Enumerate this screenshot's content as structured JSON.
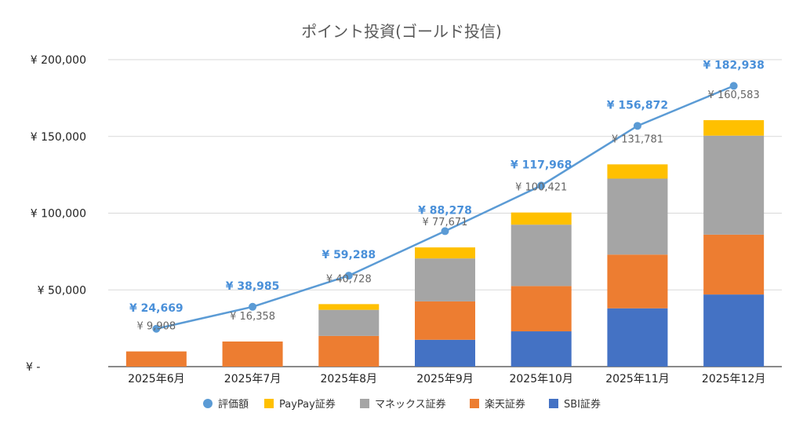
{
  "chart_data": {
    "type": "bar",
    "title": "ポイント投資(ゴールド投信)",
    "categories": [
      "2025年6月",
      "2025年7月",
      "2025年8月",
      "2025年9月",
      "2025年10月",
      "2025年11月",
      "2025年12月"
    ],
    "ylim": [
      0,
      200000
    ],
    "yticks": [
      0,
      50000,
      100000,
      150000,
      200000
    ],
    "ytick_labels": [
      "¥ -",
      "¥ 50,000",
      "¥ 100,000",
      "¥ 150,000",
      "¥ 200,000"
    ],
    "grid": true,
    "legend_position": "bottom",
    "series": [
      {
        "name": "SBI証券",
        "type": "bar",
        "color": "#4472c4",
        "values": [
          0,
          0,
          0,
          17500,
          23000,
          38000,
          47000
        ]
      },
      {
        "name": "楽天証券",
        "type": "bar",
        "color": "#ed7d31",
        "values": [
          9908,
          16358,
          20000,
          25000,
          29500,
          35000,
          39000
        ]
      },
      {
        "name": "マネックス証券",
        "type": "bar",
        "color": "#a5a5a5",
        "values": [
          0,
          0,
          17000,
          28000,
          40000,
          49500,
          64500
        ]
      },
      {
        "name": "PayPay証券",
        "type": "bar",
        "color": "#ffc000",
        "values": [
          0,
          0,
          3728,
          7171,
          7921,
          9281,
          10083
        ]
      },
      {
        "name": "評価額",
        "type": "line",
        "color": "#5b9bd5",
        "values": [
          24669,
          38985,
          59288,
          88278,
          117968,
          156872,
          182938
        ]
      }
    ],
    "bar_totals": [
      9908,
      16358,
      40728,
      77671,
      100421,
      131781,
      160583
    ],
    "bar_total_labels": [
      "¥ 9,908",
      "¥ 16,358",
      "¥ 40,728",
      "¥ 77,671",
      "¥ 100,421",
      "¥ 131,781",
      "¥ 160,583"
    ],
    "line_labels": [
      "¥ 24,669",
      "¥ 38,985",
      "¥ 59,288",
      "¥ 88,278",
      "¥ 117,968",
      "¥ 156,872",
      "¥ 182,938"
    ],
    "legend_order": [
      "評価額",
      "PayPay証券",
      "マネックス証券",
      "楽天証券",
      "SBI証券"
    ]
  }
}
